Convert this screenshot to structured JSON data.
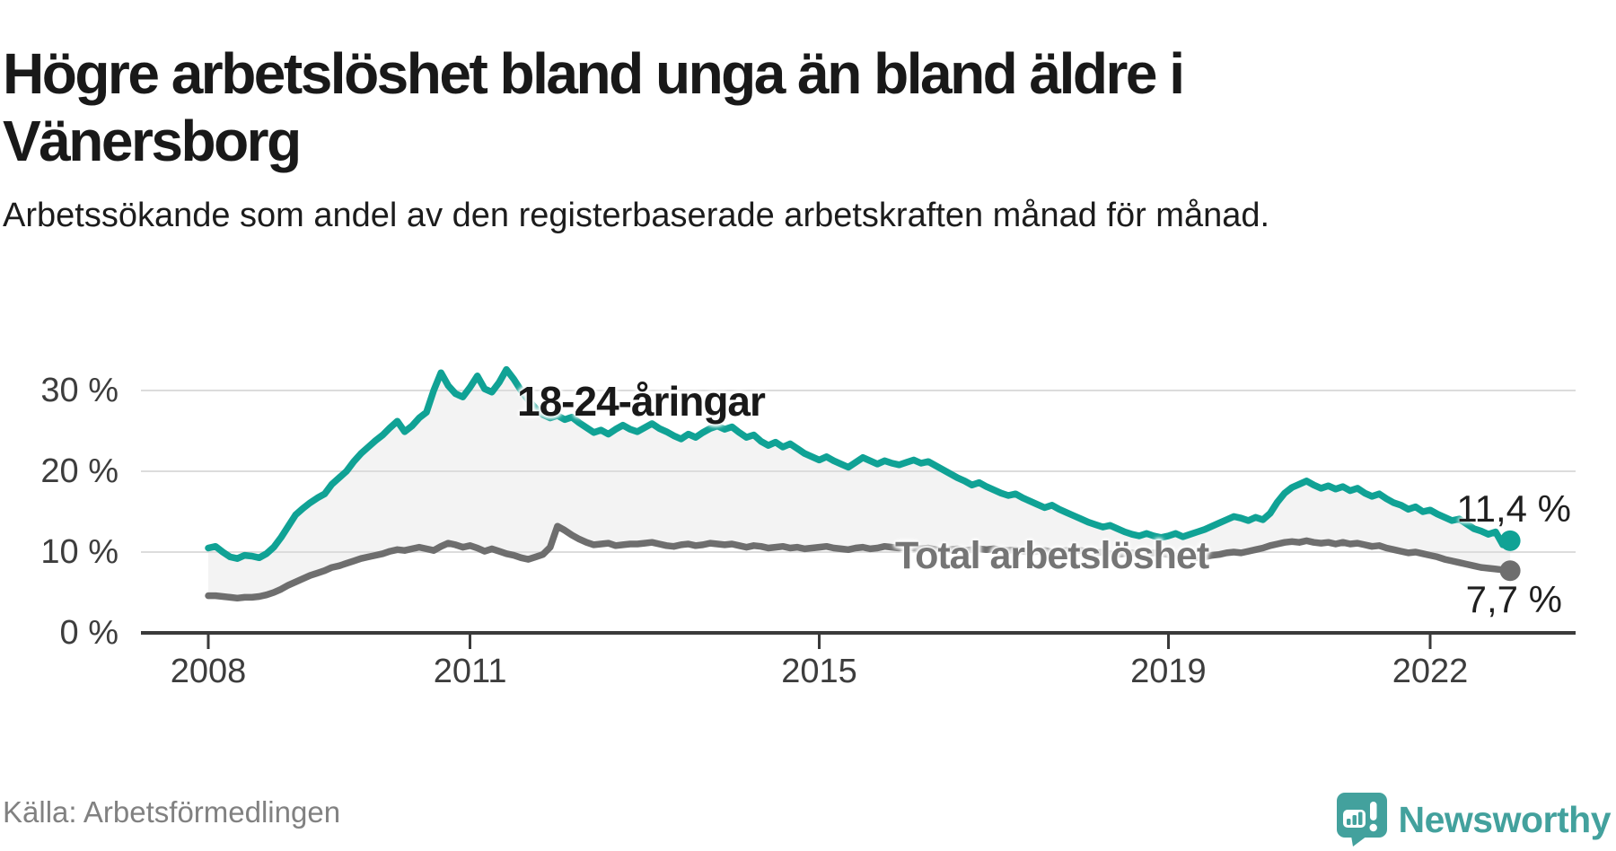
{
  "chart_data": {
    "type": "line",
    "title": "Högre arbetslöshet bland unga än bland äldre i Vänersborg",
    "subtitle": "Arbetssökande som andel av den registerbaserade arbetskraften månad för månad.",
    "source": "Källa: Arbetsförmedlingen",
    "unit": "%",
    "frequency": "monthly",
    "x_start": "2008-01",
    "x_end": "2022-12",
    "ylim": [
      0,
      34
    ],
    "grid": "horizontal-only",
    "legend_position": "inline-labels",
    "band_between_series": true,
    "yticks": [
      {
        "value": 30,
        "label": "30 %"
      },
      {
        "value": 20,
        "label": "20 %"
      },
      {
        "value": 10,
        "label": "10 %"
      },
      {
        "value": 0,
        "label": "0 %"
      }
    ],
    "xticks": [
      {
        "year": 2008,
        "label": "2008"
      },
      {
        "year": 2011,
        "label": "2011"
      },
      {
        "year": 2015,
        "label": "2015"
      },
      {
        "year": 2019,
        "label": "2019"
      },
      {
        "year": 2022,
        "label": "2022"
      }
    ],
    "colors": {
      "youth": "#10a295",
      "total": "#6e6e6e",
      "band": "#f3f3f3",
      "grid": "#dcdcdc",
      "axis": "#3a3a3a",
      "logo": "#43a19d"
    },
    "series": [
      {
        "name": "18-24-åringar",
        "color": "#10a295",
        "end_label": "11,4 %",
        "last_value": 11.4,
        "values": [
          10.5,
          10.7,
          10.0,
          9.4,
          9.2,
          9.6,
          9.5,
          9.3,
          9.8,
          10.6,
          11.8,
          13.2,
          14.6,
          15.4,
          16.1,
          16.7,
          17.2,
          18.4,
          19.2,
          20.0,
          21.2,
          22.2,
          23.0,
          23.8,
          24.5,
          25.4,
          26.2,
          24.9,
          25.6,
          26.6,
          27.3,
          30.0,
          32.2,
          30.6,
          29.6,
          29.2,
          30.4,
          31.8,
          30.2,
          29.8,
          31.0,
          32.6,
          31.4,
          30.0,
          28.8,
          27.8,
          27.0,
          26.6,
          26.9,
          26.4,
          26.7,
          26.0,
          25.4,
          24.8,
          25.1,
          24.6,
          25.2,
          25.7,
          25.2,
          24.9,
          25.4,
          25.9,
          25.3,
          24.9,
          24.4,
          24.0,
          24.6,
          24.2,
          24.8,
          25.3,
          25.6,
          25.2,
          25.5,
          24.8,
          24.2,
          24.5,
          23.7,
          23.2,
          23.6,
          23.0,
          23.4,
          22.8,
          22.2,
          21.8,
          21.4,
          21.8,
          21.3,
          20.9,
          20.5,
          21.1,
          21.7,
          21.3,
          20.9,
          21.3,
          21.0,
          20.8,
          21.1,
          21.4,
          21.0,
          21.2,
          20.7,
          20.2,
          19.7,
          19.2,
          18.8,
          18.3,
          18.6,
          18.1,
          17.7,
          17.3,
          17.0,
          17.2,
          16.7,
          16.3,
          15.9,
          15.5,
          15.8,
          15.3,
          14.9,
          14.5,
          14.1,
          13.7,
          13.4,
          13.1,
          13.3,
          12.9,
          12.5,
          12.2,
          12.0,
          12.3,
          12.0,
          11.8,
          12.0,
          12.3,
          11.9,
          12.2,
          12.5,
          12.8,
          13.2,
          13.6,
          14.0,
          14.4,
          14.2,
          13.9,
          14.3,
          14.0,
          14.8,
          16.2,
          17.3,
          18.0,
          18.4,
          18.8,
          18.3,
          17.9,
          18.2,
          17.8,
          18.1,
          17.6,
          17.9,
          17.3,
          16.9,
          17.2,
          16.6,
          16.1,
          15.8,
          15.3,
          15.6,
          15.0,
          15.2,
          14.7,
          14.3,
          13.9,
          14.1,
          13.5,
          12.9,
          12.6,
          12.2,
          12.5,
          10.9,
          11.4
        ]
      },
      {
        "name": "Total arbetslöshet",
        "color": "#6e6e6e",
        "end_label": "7,7 %",
        "last_value": 7.7,
        "values": [
          4.6,
          4.6,
          4.5,
          4.4,
          4.3,
          4.4,
          4.4,
          4.5,
          4.7,
          5.0,
          5.4,
          5.9,
          6.3,
          6.7,
          7.1,
          7.4,
          7.7,
          8.1,
          8.3,
          8.6,
          8.9,
          9.2,
          9.4,
          9.6,
          9.8,
          10.1,
          10.3,
          10.2,
          10.4,
          10.6,
          10.4,
          10.2,
          10.7,
          11.1,
          10.9,
          10.6,
          10.8,
          10.5,
          10.1,
          10.4,
          10.1,
          9.8,
          9.6,
          9.3,
          9.1,
          9.4,
          9.7,
          10.6,
          13.2,
          12.7,
          12.1,
          11.6,
          11.2,
          10.9,
          11.0,
          11.1,
          10.8,
          10.9,
          11.0,
          11.0,
          11.1,
          11.2,
          11.0,
          10.8,
          10.7,
          10.9,
          11.0,
          10.8,
          10.9,
          11.1,
          11.0,
          10.9,
          11.0,
          10.8,
          10.6,
          10.8,
          10.7,
          10.5,
          10.6,
          10.7,
          10.5,
          10.6,
          10.4,
          10.5,
          10.6,
          10.7,
          10.5,
          10.4,
          10.3,
          10.5,
          10.6,
          10.4,
          10.5,
          10.7,
          10.6,
          10.5,
          10.6,
          10.5,
          10.4,
          10.5,
          10.3,
          10.2,
          10.3,
          10.4,
          10.2,
          10.3,
          10.4,
          10.3,
          10.4,
          10.3,
          10.2,
          10.3,
          10.1,
          10.0,
          10.1,
          10.2,
          10.0,
          10.1,
          10.2,
          10.1,
          10.2,
          10.0,
          9.9,
          10.0,
          9.8,
          9.7,
          9.8,
          9.9,
          9.7,
          9.8,
          9.9,
          9.8,
          9.7,
          9.5,
          9.4,
          9.5,
          9.3,
          9.4,
          9.6,
          9.7,
          9.9,
          10.0,
          9.9,
          10.1,
          10.3,
          10.5,
          10.8,
          11.0,
          11.2,
          11.3,
          11.2,
          11.4,
          11.2,
          11.1,
          11.2,
          11.0,
          11.2,
          11.0,
          11.1,
          10.9,
          10.7,
          10.8,
          10.5,
          10.3,
          10.1,
          9.9,
          10.0,
          9.8,
          9.6,
          9.4,
          9.1,
          8.9,
          8.7,
          8.5,
          8.3,
          8.1,
          8.0,
          7.9,
          7.8,
          7.7
        ]
      }
    ]
  },
  "branding": {
    "name": "Newsworthy"
  }
}
